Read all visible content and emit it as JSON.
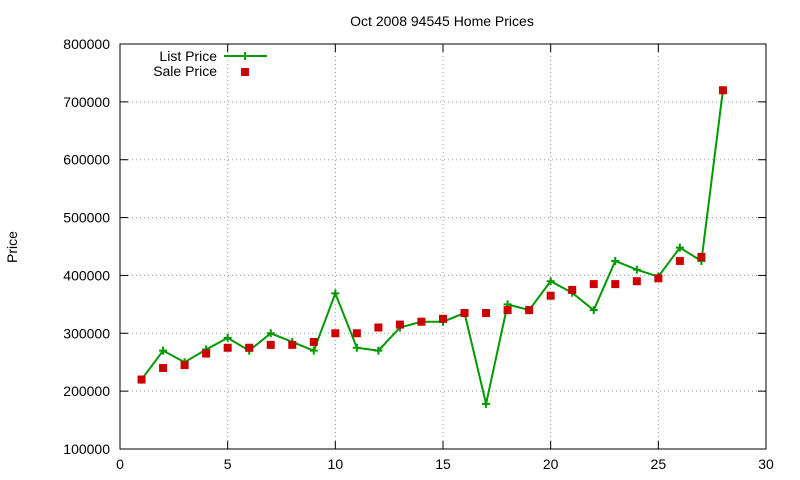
{
  "chart_data": {
    "type": "line",
    "title": "Oct 2008 94545 Home Prices",
    "xlabel": "",
    "ylabel": "Price",
    "xlim": [
      0,
      30
    ],
    "ylim": [
      100000,
      800000
    ],
    "xticks": [
      0,
      5,
      10,
      15,
      20,
      25,
      30
    ],
    "yticks": [
      100000,
      200000,
      300000,
      400000,
      500000,
      600000,
      700000,
      800000
    ],
    "grid": true,
    "legend_position": "top-left",
    "series": [
      {
        "name": "List Price",
        "style": "line+points",
        "color": "#009900",
        "x": [
          1,
          2,
          3,
          4,
          5,
          6,
          7,
          8,
          9,
          10,
          11,
          12,
          13,
          14,
          15,
          16,
          17,
          18,
          19,
          20,
          21,
          22,
          23,
          24,
          25,
          26,
          27,
          28
        ],
        "values": [
          220000,
          270000,
          250000,
          272000,
          292000,
          270000,
          300000,
          285000,
          270000,
          369000,
          275000,
          270000,
          310000,
          320000,
          320000,
          335000,
          178000,
          350000,
          340000,
          390000,
          370000,
          340000,
          425000,
          410000,
          398000,
          448000,
          425000,
          720000
        ]
      },
      {
        "name": "Sale Price",
        "style": "points",
        "color": "#cc0000",
        "x": [
          1,
          2,
          3,
          4,
          5,
          6,
          7,
          8,
          9,
          10,
          11,
          12,
          13,
          14,
          15,
          16,
          17,
          18,
          19,
          20,
          21,
          22,
          23,
          24,
          25,
          26,
          27,
          28
        ],
        "values": [
          220000,
          240000,
          245000,
          265000,
          275000,
          275000,
          280000,
          280000,
          285000,
          300000,
          300000,
          310000,
          315000,
          320000,
          325000,
          335000,
          335000,
          340000,
          340000,
          365000,
          375000,
          385000,
          385000,
          390000,
          395000,
          425000,
          432000,
          720000
        ]
      }
    ]
  }
}
